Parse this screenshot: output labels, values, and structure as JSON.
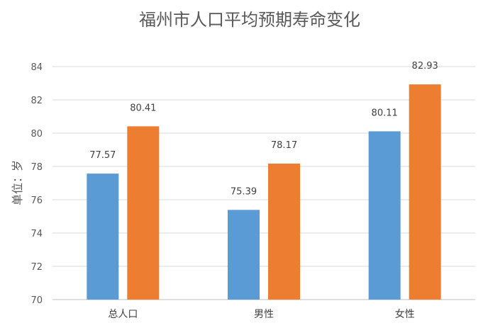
{
  "chart_data": {
    "type": "bar",
    "title": "福州市人口平均预期寿命变化",
    "ylabel": "单位：岁",
    "xlabel": "",
    "categories": [
      "总人口",
      "男性",
      "女性"
    ],
    "series": [
      {
        "values": [
          77.57,
          75.39,
          80.11
        ],
        "color": "#5b9bd5"
      },
      {
        "values": [
          80.41,
          78.17,
          82.93
        ],
        "color": "#ed7d31"
      }
    ],
    "ylim": [
      70,
      84
    ],
    "yticks": [
      70,
      72,
      74,
      76,
      78,
      80,
      82,
      84
    ],
    "grid": true,
    "legend": "none"
  }
}
